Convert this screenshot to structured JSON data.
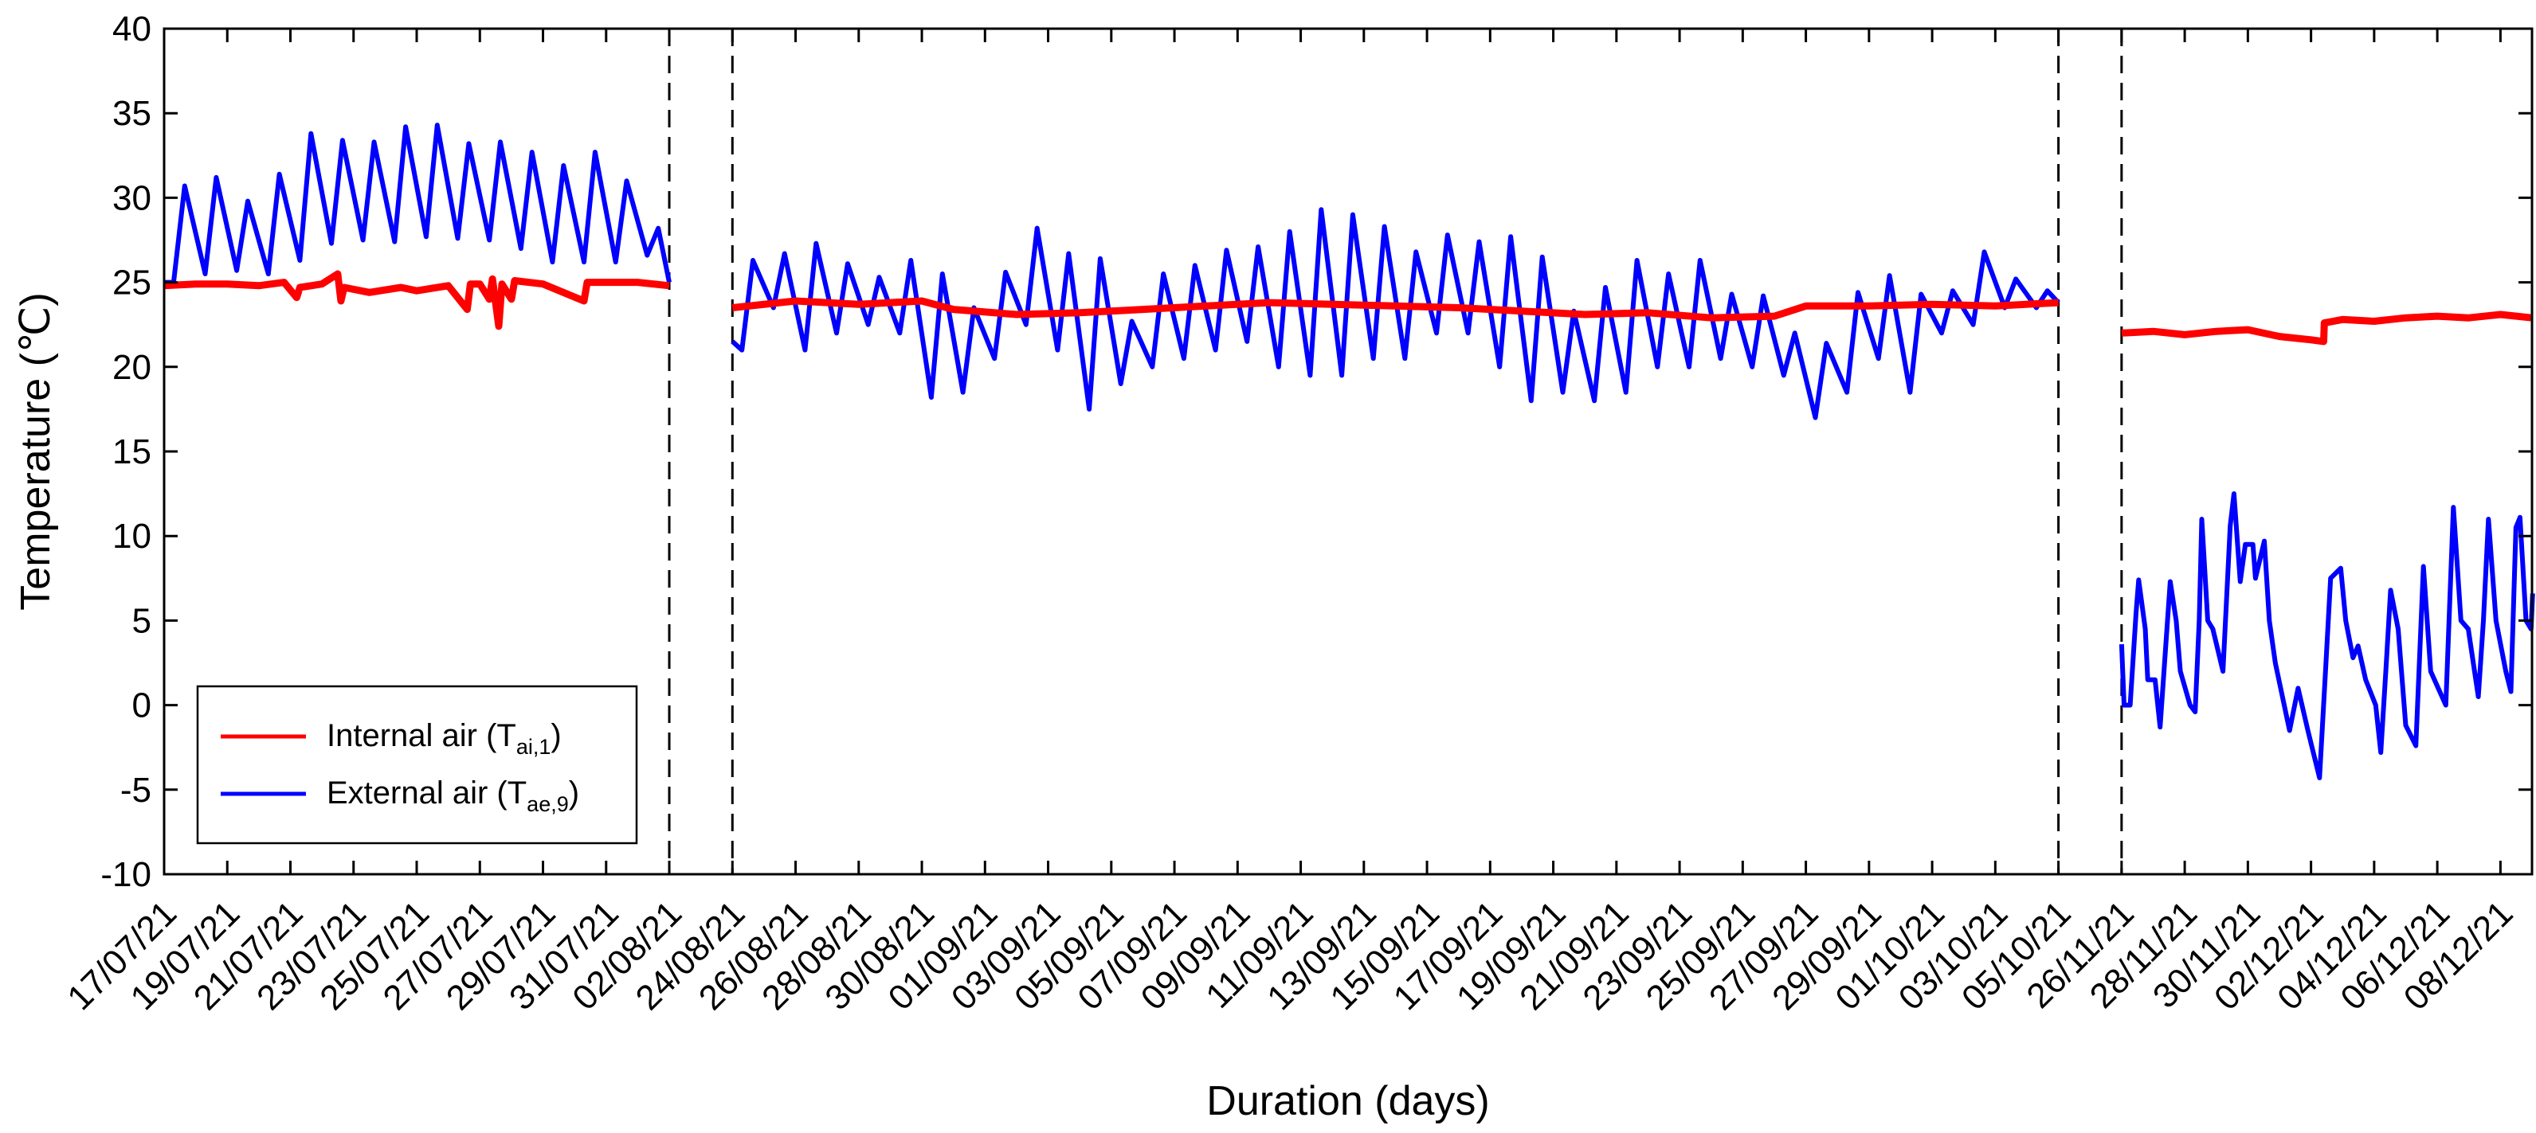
{
  "chart_data": {
    "type": "line",
    "title": "",
    "xlabel": "Duration (days)",
    "ylabel": "Temperature (℃)",
    "ylim": [
      -10,
      40
    ],
    "yticks": [
      "-10",
      "-5",
      "0",
      "5",
      "10",
      "15",
      "20",
      "25",
      "30",
      "35",
      "40"
    ],
    "ytick_values": [
      -10,
      -5,
      0,
      5,
      10,
      15,
      20,
      25,
      30,
      35,
      40
    ],
    "grid": false,
    "legend_position": "bottom-left",
    "x_axis_note": "broken date axis; x values are days on the axis (2 days per tick); dashed lines mark breaks",
    "xlim_axis_days": [
      0,
      75
    ],
    "xtick_labels": [
      "17/07/21",
      "19/07/21",
      "21/07/21",
      "23/07/21",
      "25/07/21",
      "27/07/21",
      "29/07/21",
      "31/07/21",
      "02/08/21",
      "24/08/21",
      "26/08/21",
      "28/08/21",
      "30/08/21",
      "01/09/21",
      "03/09/21",
      "05/09/21",
      "07/09/21",
      "09/09/21",
      "11/09/21",
      "13/09/21",
      "15/09/21",
      "17/09/21",
      "19/09/21",
      "21/09/21",
      "23/09/21",
      "25/09/21",
      "27/09/21",
      "29/09/21",
      "01/10/21",
      "03/10/21",
      "05/10/21",
      "26/11/21",
      "28/11/21",
      "30/11/21",
      "02/12/21",
      "04/12/21",
      "06/12/21",
      "08/12/21"
    ],
    "break_lines_axis_days": [
      16,
      18,
      60,
      62
    ],
    "segments": [
      {
        "start": "17/07/21",
        "axis_offset": 0,
        "days": 16
      },
      {
        "start": "24/08/21",
        "axis_offset": 18,
        "days": 42
      },
      {
        "start": "26/11/21",
        "axis_offset": 62,
        "days": 13
      }
    ],
    "series": [
      {
        "name": "Internal air (T",
        "subscript": "ai,1",
        "suffix": ")",
        "color": "#ff0000",
        "segments": [
          [
            [
              0,
              24.8
            ],
            [
              1,
              24.9
            ],
            [
              2,
              24.9
            ],
            [
              3,
              24.8
            ],
            [
              3.8,
              25.0
            ],
            [
              4.2,
              24.1
            ],
            [
              4.3,
              24.7
            ],
            [
              5,
              24.9
            ],
            [
              5.5,
              25.5
            ],
            [
              5.6,
              23.9
            ],
            [
              5.7,
              24.7
            ],
            [
              6.5,
              24.4
            ],
            [
              7.5,
              24.7
            ],
            [
              8,
              24.5
            ],
            [
              9,
              24.8
            ],
            [
              9.6,
              23.4
            ],
            [
              9.7,
              24.9
            ],
            [
              10,
              24.9
            ],
            [
              10.3,
              24.0
            ],
            [
              10.4,
              25.2
            ],
            [
              10.6,
              22.4
            ],
            [
              10.7,
              24.9
            ],
            [
              11,
              24.0
            ],
            [
              11.1,
              25.1
            ],
            [
              12,
              24.9
            ],
            [
              13.3,
              23.9
            ],
            [
              13.4,
              25.0
            ],
            [
              14,
              25.0
            ],
            [
              15,
              25.0
            ],
            [
              16,
              24.8
            ]
          ],
          [
            [
              0,
              23.5
            ],
            [
              2,
              23.9
            ],
            [
              4,
              23.7
            ],
            [
              6,
              23.9
            ],
            [
              7,
              23.4
            ],
            [
              9,
              23.1
            ],
            [
              11,
              23.2
            ],
            [
              13,
              23.4
            ],
            [
              15,
              23.6
            ],
            [
              17,
              23.8
            ],
            [
              19,
              23.7
            ],
            [
              21,
              23.6
            ],
            [
              23,
              23.5
            ],
            [
              25,
              23.3
            ],
            [
              27,
              23.1
            ],
            [
              29,
              23.2
            ],
            [
              31,
              22.9
            ],
            [
              33,
              23.0
            ],
            [
              34,
              23.6
            ],
            [
              36,
              23.6
            ],
            [
              38,
              23.7
            ],
            [
              40,
              23.6
            ],
            [
              42,
              23.8
            ]
          ],
          [
            [
              0,
              22.0
            ],
            [
              1,
              22.1
            ],
            [
              2,
              21.9
            ],
            [
              3,
              22.1
            ],
            [
              4,
              22.2
            ],
            [
              5,
              21.8
            ],
            [
              6,
              21.6
            ],
            [
              6.4,
              21.5
            ],
            [
              6.42,
              22.6
            ],
            [
              7,
              22.8
            ],
            [
              8,
              22.7
            ],
            [
              9,
              22.9
            ],
            [
              10,
              23.0
            ],
            [
              11,
              22.9
            ],
            [
              12,
              23.1
            ],
            [
              13,
              22.9
            ]
          ]
        ]
      },
      {
        "name": "External air (T",
        "subscript": "ae,9",
        "suffix": ")",
        "color": "#0000ff",
        "daily_segments": [
          {
            "start_value": 25.0,
            "end_value": 25.0,
            "daily_min": [
              25.0,
              25.5,
              25.7,
              25.5,
              26.3,
              27.3,
              27.5,
              27.4,
              27.7,
              27.6,
              27.5,
              27.0,
              26.2,
              26.2,
              26.2,
              26.6
            ],
            "daily_max": [
              30.7,
              31.2,
              29.8,
              31.4,
              33.8,
              33.4,
              33.3,
              34.2,
              34.3,
              33.2,
              33.3,
              32.7,
              31.9,
              32.7,
              31.0,
              28.2
            ]
          },
          {
            "start_value": 21.5,
            "end_value": 23.8,
            "daily_min": [
              21.0,
              23.5,
              21.0,
              22.0,
              22.5,
              22.0,
              18.2,
              18.5,
              20.5,
              22.5,
              21.0,
              17.5,
              19.0,
              20.0,
              20.5,
              21.0,
              21.5,
              20.0,
              19.5,
              19.5,
              20.5,
              20.5,
              22.0,
              22.0,
              20.0,
              18.0,
              18.5,
              18.0,
              18.5,
              20.0,
              20.0,
              20.5,
              20.0,
              19.5,
              17.0,
              18.5,
              20.5,
              18.5,
              22.0,
              22.5,
              23.5,
              23.5
            ],
            "daily_max": [
              26.3,
              26.7,
              27.3,
              26.1,
              25.3,
              26.3,
              25.5,
              23.5,
              25.6,
              28.2,
              26.7,
              26.4,
              22.7,
              25.5,
              26.0,
              26.9,
              27.1,
              28.0,
              29.3,
              29.0,
              28.3,
              26.8,
              27.8,
              27.4,
              27.7,
              26.5,
              23.3,
              24.7,
              26.3,
              25.5,
              26.3,
              24.3,
              24.2,
              22.0,
              21.4,
              24.4,
              25.4,
              24.3,
              24.5,
              26.8,
              25.2,
              24.5
            ]
          }
        ],
        "segment3_points": [
          [
            0,
            3.6
          ],
          [
            0.08,
            0
          ],
          [
            0.27,
            0
          ],
          [
            0.46,
            5.5
          ],
          [
            0.54,
            7.4
          ],
          [
            0.75,
            4.5
          ],
          [
            0.83,
            1.5
          ],
          [
            1.06,
            1.5
          ],
          [
            1.22,
            -1.3
          ],
          [
            1.54,
            7.3
          ],
          [
            1.73,
            5
          ],
          [
            1.86,
            2
          ],
          [
            2.17,
            0
          ],
          [
            2.33,
            -0.4
          ],
          [
            2.46,
            5
          ],
          [
            2.54,
            11.0
          ],
          [
            2.73,
            5
          ],
          [
            2.89,
            4.5
          ],
          [
            3.21,
            2
          ],
          [
            3.44,
            10.6
          ],
          [
            3.56,
            12.5
          ],
          [
            3.76,
            7.3
          ],
          [
            3.92,
            9.5
          ],
          [
            4.16,
            9.5
          ],
          [
            4.24,
            7.5
          ],
          [
            4.52,
            9.7
          ],
          [
            4.68,
            5
          ],
          [
            4.87,
            2.5
          ],
          [
            5.32,
            -1.5
          ],
          [
            5.59,
            1.0
          ],
          [
            5.9,
            -1.5
          ],
          [
            6.27,
            -4.3
          ],
          [
            6.46,
            2
          ],
          [
            6.62,
            7.5
          ],
          [
            6.94,
            8.1
          ],
          [
            7.1,
            5
          ],
          [
            7.33,
            2.8
          ],
          [
            7.49,
            3.5
          ],
          [
            7.73,
            1.5
          ],
          [
            8.05,
            0
          ],
          [
            8.21,
            -2.8
          ],
          [
            8.37,
            2
          ],
          [
            8.52,
            6.8
          ],
          [
            8.76,
            4.5
          ],
          [
            9.0,
            -1.2
          ],
          [
            9.32,
            -2.4
          ],
          [
            9.56,
            8.2
          ],
          [
            9.79,
            2
          ],
          [
            10.27,
            0
          ],
          [
            10.51,
            11.7
          ],
          [
            10.75,
            5
          ],
          [
            10.98,
            4.5
          ],
          [
            11.3,
            0.5
          ],
          [
            11.46,
            5
          ],
          [
            11.62,
            11.0
          ],
          [
            11.86,
            5
          ],
          [
            12.17,
            2
          ],
          [
            12.33,
            0.8
          ],
          [
            12.49,
            10.5
          ],
          [
            12.62,
            11.1
          ],
          [
            12.81,
            5
          ],
          [
            12.97,
            4.5
          ],
          [
            13.02,
            6.6
          ]
        ]
      }
    ]
  }
}
